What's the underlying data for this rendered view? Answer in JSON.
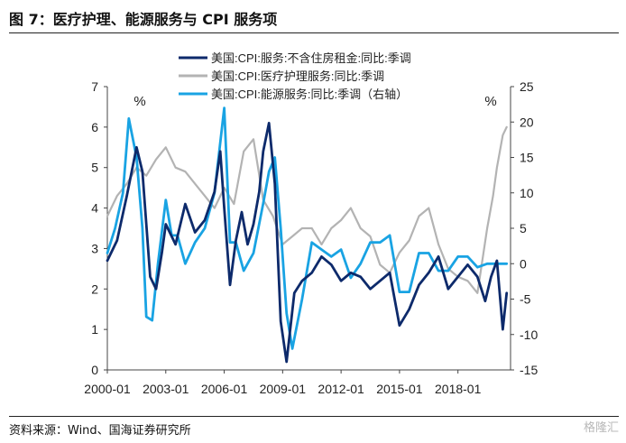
{
  "title": "图 7：医疗护理、能源服务与 CPI 服务项",
  "source": "资料来源：Wind、国海证券研究所",
  "watermark": "格隆汇",
  "chart_data": {
    "type": "line",
    "x_tick_labels": [
      "2000-01",
      "2003-01",
      "2006-01",
      "2009-01",
      "2012-01",
      "2015-01",
      "2018-01"
    ],
    "left_axis": {
      "unit": "%",
      "ylim": [
        0,
        7
      ],
      "ticks": [
        0,
        1,
        2,
        3,
        4,
        5,
        6,
        7
      ]
    },
    "right_axis": {
      "unit": "%",
      "ylim": [
        -15,
        25
      ],
      "ticks": [
        -15,
        -10,
        -5,
        0,
        5,
        10,
        15,
        20,
        25
      ]
    },
    "legend_position": "top-right",
    "grid": false,
    "series": [
      {
        "name": "美国:CPI:服务:不含住房租金:同比:季调",
        "axis": "left",
        "color": "#0d2a6b",
        "x": [
          2000.0,
          2000.5,
          2001.0,
          2001.5,
          2001.8,
          2002.2,
          2002.5,
          2002.8,
          2003.0,
          2003.5,
          2004.0,
          2004.5,
          2005.0,
          2005.5,
          2005.8,
          2006.0,
          2006.3,
          2006.6,
          2006.9,
          2007.2,
          2007.5,
          2007.8,
          2008.0,
          2008.3,
          2008.6,
          2008.9,
          2009.2,
          2009.6,
          2010.0,
          2010.5,
          2011.0,
          2011.5,
          2012.0,
          2012.5,
          2013.0,
          2013.5,
          2014.0,
          2014.5,
          2015.0,
          2015.5,
          2016.0,
          2016.5,
          2017.0,
          2017.5,
          2018.0,
          2018.5,
          2019.0,
          2019.4,
          2019.7,
          2020.0,
          2020.3,
          2020.5
        ],
        "y": [
          2.7,
          3.2,
          4.3,
          5.5,
          4.9,
          2.3,
          2.0,
          2.9,
          3.6,
          3.1,
          4.1,
          3.4,
          3.7,
          4.4,
          5.4,
          4.0,
          2.1,
          3.2,
          3.9,
          3.1,
          3.6,
          4.4,
          5.4,
          6.1,
          4.6,
          1.2,
          0.2,
          1.9,
          2.2,
          2.4,
          2.8,
          2.6,
          2.2,
          2.4,
          2.3,
          2.0,
          2.2,
          2.4,
          1.1,
          1.5,
          2.1,
          2.4,
          2.8,
          2.0,
          2.3,
          2.6,
          2.3,
          1.7,
          2.3,
          2.7,
          1.0,
          1.9
        ]
      },
      {
        "name": "美国:CPI:医疗护理服务:同比:季调",
        "axis": "left",
        "color": "#b3b3b3",
        "x": [
          2000.0,
          2000.5,
          2001.0,
          2001.5,
          2002.0,
          2002.5,
          2003.0,
          2003.5,
          2004.0,
          2004.5,
          2005.0,
          2005.5,
          2006.0,
          2006.5,
          2007.0,
          2007.5,
          2008.0,
          2008.5,
          2009.0,
          2009.5,
          2010.0,
          2010.5,
          2011.0,
          2011.5,
          2012.0,
          2012.5,
          2013.0,
          2013.5,
          2014.0,
          2014.5,
          2015.0,
          2015.5,
          2016.0,
          2016.5,
          2017.0,
          2017.5,
          2018.0,
          2018.5,
          2019.0,
          2019.5,
          2019.8,
          2020.0,
          2020.3,
          2020.5
        ],
        "y": [
          3.8,
          4.3,
          4.6,
          5.0,
          4.8,
          5.2,
          5.5,
          5.0,
          4.9,
          4.6,
          4.3,
          4.0,
          4.5,
          4.1,
          5.4,
          5.7,
          4.2,
          3.8,
          3.1,
          3.3,
          3.5,
          3.5,
          3.1,
          3.5,
          3.7,
          4.0,
          3.5,
          3.3,
          2.6,
          2.4,
          2.9,
          3.2,
          3.8,
          4.0,
          3.1,
          2.5,
          2.3,
          2.2,
          1.9,
          3.5,
          4.3,
          5.0,
          5.8,
          6.0
        ]
      },
      {
        "name": "美国:CPI:能源服务:同比:季调（右轴）",
        "axis": "right",
        "color": "#19a3e3",
        "x": [
          2000.0,
          2000.4,
          2000.8,
          2001.1,
          2001.5,
          2001.8,
          2002.0,
          2002.3,
          2002.6,
          2003.0,
          2003.3,
          2003.6,
          2004.0,
          2004.5,
          2005.0,
          2005.5,
          2006.0,
          2006.3,
          2006.6,
          2007.0,
          2007.5,
          2008.0,
          2008.3,
          2008.6,
          2008.9,
          2009.2,
          2009.5,
          2010.0,
          2010.5,
          2011.0,
          2011.5,
          2012.0,
          2012.5,
          2013.0,
          2013.5,
          2014.0,
          2014.5,
          2015.0,
          2015.5,
          2016.0,
          2016.5,
          2017.0,
          2017.5,
          2018.0,
          2018.5,
          2019.0,
          2019.5,
          2020.0,
          2020.5
        ],
        "y": [
          1.5,
          5.0,
          10.0,
          20.5,
          15.0,
          5.0,
          -7.5,
          -8.0,
          0.0,
          9.0,
          4.0,
          4.0,
          0.0,
          3.0,
          5.0,
          10.0,
          22.0,
          3.0,
          3.0,
          -1.0,
          1.5,
          8.5,
          13.0,
          15.0,
          5.0,
          -7.0,
          -12.0,
          -5.0,
          3.0,
          2.0,
          1.0,
          2.0,
          -2.0,
          0.0,
          3.0,
          3.0,
          4.0,
          -4.0,
          -4.0,
          1.5,
          1.5,
          -1.0,
          -1.0,
          1.0,
          1.0,
          -0.5,
          0.0,
          0.0,
          0.0
        ]
      }
    ]
  }
}
